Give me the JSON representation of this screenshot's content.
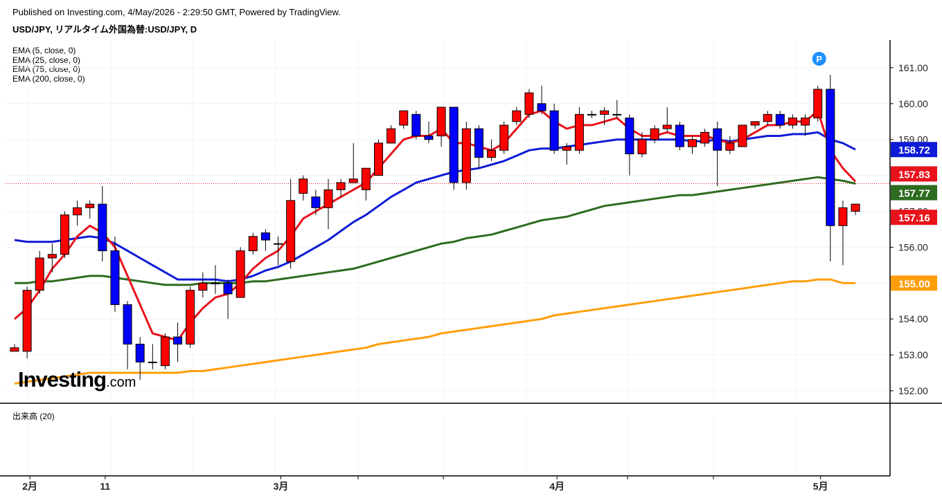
{
  "header": {
    "published": "Published on Investing.com, 4/May/2026 - 2:29:50 GMT, Powered by TradingView.",
    "symbol_title": "USD/JPY, リアルタイム外国為替:USD/JPY, D"
  },
  "legend": [
    "EMA (5, close, 0)",
    "EMA (25, close, 0)",
    "EMA (75, close, 0)",
    "EMA (200, close, 0)"
  ],
  "volume_label": "出来高 (20)",
  "logo": {
    "main": "Investing",
    "suffix": ".com"
  },
  "marker_label": "P",
  "colors": {
    "up": "#ff0000",
    "down": "#0000ff",
    "ema5": "#e8121b",
    "ema25": "#0d1bd6",
    "ema75": "#2d6b1f",
    "ema200": "#ff9d0a",
    "current": "#e8121b"
  },
  "chart_data": {
    "type": "candlestick",
    "timeframe": "D",
    "y_axis_ticks": [
      "152.00",
      "153.00",
      "154.00",
      "155.00",
      "156.00",
      "157.00",
      "158.00",
      "159.00",
      "160.00",
      "161.00"
    ],
    "x_axis_labels": [
      {
        "label": "2月",
        "day_index": 1
      },
      {
        "label": "11",
        "day_index": 7
      },
      {
        "label": "3月",
        "day_index": 21
      },
      {
        "label": "4月",
        "day_index": 43
      },
      {
        "label": "5月",
        "day_index": 64
      }
    ],
    "price_labels": {
      "ema25": "158.72",
      "ema5": "157.83",
      "current_close": "157.77",
      "last_candle_close": "157.16",
      "ema200": "155.00"
    },
    "current_price": 157.77,
    "candles": [
      {
        "o": 153.1,
        "h": 153.3,
        "l": 153.1,
        "c": 153.2
      },
      {
        "o": 153.1,
        "h": 154.9,
        "l": 152.9,
        "c": 154.8
      },
      {
        "o": 154.8,
        "h": 155.9,
        "l": 154.7,
        "c": 155.7
      },
      {
        "o": 155.7,
        "h": 156.1,
        "l": 155.3,
        "c": 155.8
      },
      {
        "o": 155.8,
        "h": 157.0,
        "l": 155.7,
        "c": 156.9
      },
      {
        "o": 156.9,
        "h": 157.3,
        "l": 156.6,
        "c": 157.1
      },
      {
        "o": 157.1,
        "h": 157.3,
        "l": 156.8,
        "c": 157.2
      },
      {
        "o": 157.2,
        "h": 157.7,
        "l": 155.6,
        "c": 155.9
      },
      {
        "o": 155.9,
        "h": 156.3,
        "l": 154.2,
        "c": 154.4
      },
      {
        "o": 154.4,
        "h": 154.5,
        "l": 152.6,
        "c": 153.3
      },
      {
        "o": 153.3,
        "h": 153.5,
        "l": 152.3,
        "c": 152.8
      },
      {
        "o": 152.8,
        "h": 153.3,
        "l": 152.6,
        "c": 152.8
      },
      {
        "o": 152.7,
        "h": 153.6,
        "l": 152.6,
        "c": 153.5
      },
      {
        "o": 153.5,
        "h": 153.9,
        "l": 152.8,
        "c": 153.3
      },
      {
        "o": 153.3,
        "h": 154.9,
        "l": 153.2,
        "c": 154.8
      },
      {
        "o": 154.8,
        "h": 155.3,
        "l": 154.6,
        "c": 155.0
      },
      {
        "o": 155.0,
        "h": 155.5,
        "l": 154.7,
        "c": 155.0
      },
      {
        "o": 155.0,
        "h": 155.1,
        "l": 154.0,
        "c": 154.7
      },
      {
        "o": 154.6,
        "h": 156.0,
        "l": 154.6,
        "c": 155.9
      },
      {
        "o": 155.9,
        "h": 156.4,
        "l": 155.8,
        "c": 156.3
      },
      {
        "o": 156.4,
        "h": 156.5,
        "l": 155.9,
        "c": 156.2
      },
      {
        "o": 156.1,
        "h": 156.3,
        "l": 155.5,
        "c": 156.1
      },
      {
        "o": 155.6,
        "h": 157.9,
        "l": 155.4,
        "c": 157.3
      },
      {
        "o": 157.5,
        "h": 158.0,
        "l": 157.3,
        "c": 157.9
      },
      {
        "o": 157.4,
        "h": 157.6,
        "l": 156.9,
        "c": 157.1
      },
      {
        "o": 157.1,
        "h": 157.9,
        "l": 156.5,
        "c": 157.6
      },
      {
        "o": 157.6,
        "h": 157.9,
        "l": 157.4,
        "c": 157.8
      },
      {
        "o": 157.8,
        "h": 158.9,
        "l": 157.8,
        "c": 157.9
      },
      {
        "o": 157.6,
        "h": 158.2,
        "l": 157.3,
        "c": 158.2
      },
      {
        "o": 158.0,
        "h": 159.0,
        "l": 158.0,
        "c": 158.9
      },
      {
        "o": 158.9,
        "h": 159.4,
        "l": 158.9,
        "c": 159.3
      },
      {
        "o": 159.4,
        "h": 159.8,
        "l": 159.3,
        "c": 159.8
      },
      {
        "o": 159.7,
        "h": 159.8,
        "l": 159.0,
        "c": 159.1
      },
      {
        "o": 159.1,
        "h": 159.5,
        "l": 158.9,
        "c": 159.0
      },
      {
        "o": 159.1,
        "h": 159.9,
        "l": 158.8,
        "c": 159.9
      },
      {
        "o": 159.9,
        "h": 159.9,
        "l": 157.6,
        "c": 157.8
      },
      {
        "o": 157.8,
        "h": 159.5,
        "l": 157.6,
        "c": 159.3
      },
      {
        "o": 159.3,
        "h": 159.4,
        "l": 158.2,
        "c": 158.5
      },
      {
        "o": 158.5,
        "h": 159.0,
        "l": 158.4,
        "c": 158.7
      },
      {
        "o": 158.7,
        "h": 159.5,
        "l": 158.6,
        "c": 159.4
      },
      {
        "o": 159.5,
        "h": 159.9,
        "l": 159.4,
        "c": 159.8
      },
      {
        "o": 159.7,
        "h": 160.4,
        "l": 159.6,
        "c": 160.3
      },
      {
        "o": 160.0,
        "h": 160.5,
        "l": 159.7,
        "c": 159.8
      },
      {
        "o": 159.8,
        "h": 160.0,
        "l": 158.6,
        "c": 158.7
      },
      {
        "o": 158.7,
        "h": 158.9,
        "l": 158.3,
        "c": 158.8
      },
      {
        "o": 158.7,
        "h": 159.9,
        "l": 158.6,
        "c": 159.7
      },
      {
        "o": 159.7,
        "h": 159.8,
        "l": 159.6,
        "c": 159.7
      },
      {
        "o": 159.7,
        "h": 159.9,
        "l": 159.4,
        "c": 159.8
      },
      {
        "o": 159.7,
        "h": 160.1,
        "l": 159.6,
        "c": 159.7
      },
      {
        "o": 159.6,
        "h": 159.7,
        "l": 158.0,
        "c": 158.6
      },
      {
        "o": 158.6,
        "h": 159.2,
        "l": 158.5,
        "c": 159.0
      },
      {
        "o": 159.0,
        "h": 159.4,
        "l": 158.9,
        "c": 159.3
      },
      {
        "o": 159.3,
        "h": 159.9,
        "l": 159.2,
        "c": 159.4
      },
      {
        "o": 159.4,
        "h": 159.5,
        "l": 158.7,
        "c": 158.8
      },
      {
        "o": 158.8,
        "h": 159.1,
        "l": 158.6,
        "c": 159.0
      },
      {
        "o": 158.9,
        "h": 159.3,
        "l": 158.8,
        "c": 159.2
      },
      {
        "o": 159.3,
        "h": 159.5,
        "l": 157.7,
        "c": 158.7
      },
      {
        "o": 158.7,
        "h": 159.1,
        "l": 158.6,
        "c": 158.9
      },
      {
        "o": 158.8,
        "h": 159.4,
        "l": 158.8,
        "c": 159.4
      },
      {
        "o": 159.4,
        "h": 159.5,
        "l": 159.3,
        "c": 159.5
      },
      {
        "o": 159.5,
        "h": 159.8,
        "l": 159.4,
        "c": 159.7
      },
      {
        "o": 159.7,
        "h": 159.8,
        "l": 159.3,
        "c": 159.4
      },
      {
        "o": 159.4,
        "h": 159.7,
        "l": 159.3,
        "c": 159.6
      },
      {
        "o": 159.4,
        "h": 159.7,
        "l": 159.1,
        "c": 159.6
      },
      {
        "o": 159.6,
        "h": 160.5,
        "l": 159.5,
        "c": 160.4
      },
      {
        "o": 160.4,
        "h": 160.8,
        "l": 155.6,
        "c": 156.6
      },
      {
        "o": 156.6,
        "h": 157.3,
        "l": 155.5,
        "c": 157.1
      },
      {
        "o": 157.0,
        "h": 157.2,
        "l": 156.9,
        "c": 157.2
      }
    ],
    "ema5": [
      154.0,
      154.3,
      154.8,
      155.4,
      155.8,
      156.3,
      156.6,
      156.4,
      156.0,
      155.2,
      154.4,
      153.6,
      153.5,
      153.4,
      153.9,
      154.3,
      154.6,
      154.7,
      155.0,
      155.4,
      155.7,
      155.9,
      156.3,
      156.8,
      157.0,
      157.2,
      157.4,
      157.6,
      157.8,
      158.2,
      158.6,
      159.0,
      159.1,
      159.1,
      159.3,
      158.9,
      158.9,
      158.8,
      158.7,
      158.9,
      159.3,
      159.7,
      159.8,
      159.5,
      159.3,
      159.4,
      159.4,
      159.5,
      159.6,
      159.3,
      159.1,
      159.1,
      159.2,
      159.1,
      159.1,
      159.1,
      159.0,
      158.9,
      159.0,
      159.2,
      159.4,
      159.4,
      159.5,
      159.5,
      159.8,
      158.7,
      158.2,
      157.83
    ],
    "ema25": [
      156.2,
      156.15,
      156.15,
      156.15,
      156.2,
      156.25,
      156.3,
      156.25,
      156.1,
      155.9,
      155.7,
      155.5,
      155.3,
      155.1,
      155.1,
      155.1,
      155.1,
      155.05,
      155.1,
      155.2,
      155.35,
      155.45,
      155.6,
      155.8,
      156.0,
      156.2,
      156.45,
      156.7,
      156.9,
      157.15,
      157.4,
      157.6,
      157.8,
      157.9,
      158.0,
      158.1,
      158.15,
      158.2,
      158.3,
      158.4,
      158.55,
      158.7,
      158.75,
      158.75,
      158.8,
      158.85,
      158.9,
      158.95,
      159.0,
      159.0,
      159.0,
      159.0,
      159.0,
      159.0,
      158.95,
      158.95,
      159.0,
      158.95,
      159.0,
      159.05,
      159.1,
      159.1,
      159.15,
      159.15,
      159.2,
      159.0,
      158.9,
      158.72
    ],
    "ema75": [
      155.0,
      155.0,
      155.05,
      155.05,
      155.1,
      155.15,
      155.2,
      155.2,
      155.15,
      155.1,
      155.05,
      155.0,
      154.95,
      154.95,
      154.95,
      155.0,
      155.0,
      155.0,
      155.0,
      155.05,
      155.05,
      155.1,
      155.15,
      155.2,
      155.25,
      155.3,
      155.35,
      155.4,
      155.5,
      155.6,
      155.7,
      155.8,
      155.9,
      156.0,
      156.1,
      156.15,
      156.25,
      156.3,
      156.35,
      156.45,
      156.55,
      156.65,
      156.75,
      156.8,
      156.85,
      156.95,
      157.05,
      157.15,
      157.2,
      157.25,
      157.3,
      157.35,
      157.4,
      157.45,
      157.45,
      157.5,
      157.55,
      157.6,
      157.65,
      157.7,
      157.75,
      157.8,
      157.85,
      157.9,
      157.95,
      157.9,
      157.85,
      157.77
    ],
    "ema200": [
      152.2,
      152.25,
      152.3,
      152.35,
      152.4,
      152.45,
      152.5,
      152.5,
      152.5,
      152.5,
      152.5,
      152.5,
      152.5,
      152.5,
      152.55,
      152.55,
      152.6,
      152.65,
      152.7,
      152.75,
      152.8,
      152.85,
      152.9,
      152.95,
      153.0,
      153.05,
      153.1,
      153.15,
      153.2,
      153.3,
      153.35,
      153.4,
      153.45,
      153.5,
      153.6,
      153.65,
      153.7,
      153.75,
      153.8,
      153.85,
      153.9,
      153.95,
      154.0,
      154.1,
      154.15,
      154.2,
      154.25,
      154.3,
      154.35,
      154.4,
      154.45,
      154.5,
      154.55,
      154.6,
      154.65,
      154.7,
      154.75,
      154.8,
      154.85,
      154.9,
      154.95,
      155.0,
      155.05,
      155.05,
      155.1,
      155.1,
      155.0,
      155.0
    ]
  }
}
